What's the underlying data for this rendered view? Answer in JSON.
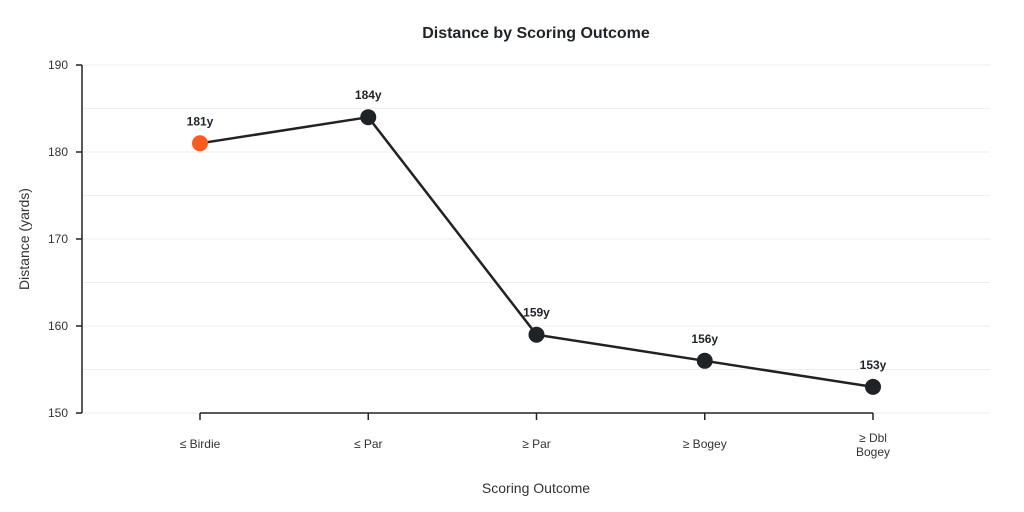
{
  "chart_data": {
    "type": "line",
    "title": "Distance by Scoring Outcome",
    "xlabel": "Scoring Outcome",
    "ylabel": "Distance (yards)",
    "categories": [
      "≤ Birdie",
      "≤ Par",
      "≥ Par",
      "≥ Bogey",
      "≥ Dbl Bogey"
    ],
    "values": [
      181,
      184,
      159,
      156,
      153
    ],
    "data_labels": [
      "181y",
      "184y",
      "159y",
      "156y",
      "153y"
    ],
    "ylim": [
      150,
      190
    ],
    "yticks": [
      150,
      160,
      170,
      180,
      190
    ],
    "grid": true,
    "colors": {
      "line": "#222222",
      "point": "#1f2328",
      "highlight": "#ff5a1f"
    },
    "highlight_index": 0
  }
}
